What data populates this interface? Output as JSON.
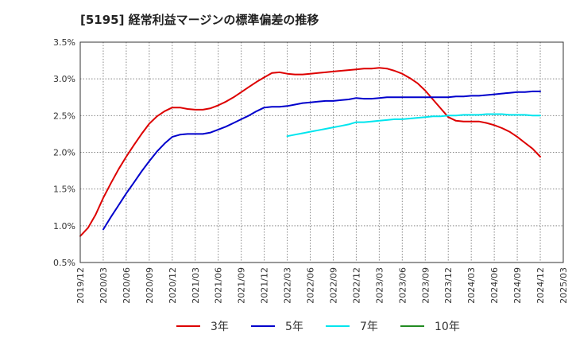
{
  "chart_data": {
    "type": "line",
    "title": "[5195]  経常利益マージンの標準偏差の推移",
    "ylim": [
      0.5,
      3.5
    ],
    "yticks": [
      "0.5%",
      "1.0%",
      "1.5%",
      "2.0%",
      "2.5%",
      "3.0%",
      "3.5%"
    ],
    "ytick_values": [
      0.5,
      1.0,
      1.5,
      2.0,
      2.5,
      3.0,
      3.5
    ],
    "xticks": [
      "2019/12",
      "2020/03",
      "2020/06",
      "2020/09",
      "2020/12",
      "2021/03",
      "2021/06",
      "2021/09",
      "2021/12",
      "2022/03",
      "2022/06",
      "2022/09",
      "2022/12",
      "2023/03",
      "2023/06",
      "2023/09",
      "2023/12",
      "2024/03",
      "2024/06",
      "2024/09",
      "2024/12",
      "2025/03"
    ],
    "grid": true,
    "legend_position": "bottom",
    "series": [
      {
        "name": "3年",
        "color": "#dd0000",
        "x": [
          "2019/12",
          "2020/01",
          "2020/02",
          "2020/03",
          "2020/04",
          "2020/05",
          "2020/06",
          "2020/07",
          "2020/08",
          "2020/09",
          "2020/10",
          "2020/11",
          "2020/12",
          "2021/01",
          "2021/02",
          "2021/03",
          "2021/04",
          "2021/05",
          "2021/06",
          "2021/07",
          "2021/08",
          "2021/09",
          "2021/10",
          "2021/11",
          "2021/12",
          "2022/01",
          "2022/02",
          "2022/03",
          "2022/04",
          "2022/05",
          "2022/06",
          "2022/07",
          "2022/08",
          "2022/09",
          "2022/10",
          "2022/11",
          "2022/12",
          "2023/01",
          "2023/02",
          "2023/03",
          "2023/04",
          "2023/05",
          "2023/06",
          "2023/07",
          "2023/08",
          "2023/09",
          "2023/10",
          "2023/11",
          "2023/12",
          "2024/01",
          "2024/02",
          "2024/03",
          "2024/04",
          "2024/05",
          "2024/06",
          "2024/07",
          "2024/08",
          "2024/09",
          "2024/10",
          "2024/11",
          "2024/12"
        ],
        "values": [
          0.86,
          0.97,
          1.15,
          1.38,
          1.58,
          1.77,
          1.94,
          2.1,
          2.25,
          2.39,
          2.49,
          2.56,
          2.61,
          2.61,
          2.59,
          2.58,
          2.58,
          2.6,
          2.64,
          2.69,
          2.75,
          2.82,
          2.89,
          2.96,
          3.02,
          3.08,
          3.09,
          3.07,
          3.06,
          3.06,
          3.07,
          3.08,
          3.09,
          3.1,
          3.11,
          3.12,
          3.13,
          3.14,
          3.14,
          3.15,
          3.14,
          3.11,
          3.07,
          3.01,
          2.94,
          2.84,
          2.72,
          2.6,
          2.48,
          2.43,
          2.42,
          2.42,
          2.42,
          2.4,
          2.37,
          2.33,
          2.28,
          2.21,
          2.13,
          2.05,
          1.94
        ]
      },
      {
        "name": "5年",
        "color": "#0000cc",
        "x": [
          "2020/03",
          "2020/04",
          "2020/05",
          "2020/06",
          "2020/07",
          "2020/08",
          "2020/09",
          "2020/10",
          "2020/11",
          "2020/12",
          "2021/01",
          "2021/02",
          "2021/03",
          "2021/04",
          "2021/05",
          "2021/06",
          "2021/07",
          "2021/08",
          "2021/09",
          "2021/10",
          "2021/11",
          "2021/12",
          "2022/01",
          "2022/02",
          "2022/03",
          "2022/04",
          "2022/05",
          "2022/06",
          "2022/07",
          "2022/08",
          "2022/09",
          "2022/10",
          "2022/11",
          "2022/12",
          "2023/01",
          "2023/02",
          "2023/03",
          "2023/04",
          "2023/05",
          "2023/06",
          "2023/07",
          "2023/08",
          "2023/09",
          "2023/10",
          "2023/11",
          "2023/12",
          "2024/01",
          "2024/02",
          "2024/03",
          "2024/04",
          "2024/05",
          "2024/06",
          "2024/07",
          "2024/08",
          "2024/09",
          "2024/10",
          "2024/11",
          "2024/12"
        ],
        "values": [
          0.95,
          1.12,
          1.28,
          1.44,
          1.59,
          1.74,
          1.88,
          2.01,
          2.12,
          2.21,
          2.24,
          2.25,
          2.25,
          2.25,
          2.27,
          2.31,
          2.35,
          2.4,
          2.45,
          2.5,
          2.56,
          2.61,
          2.62,
          2.62,
          2.63,
          2.65,
          2.67,
          2.68,
          2.69,
          2.7,
          2.7,
          2.71,
          2.72,
          2.74,
          2.73,
          2.73,
          2.74,
          2.75,
          2.75,
          2.75,
          2.75,
          2.75,
          2.75,
          2.75,
          2.75,
          2.75,
          2.76,
          2.76,
          2.77,
          2.77,
          2.78,
          2.79,
          2.8,
          2.81,
          2.82,
          2.82,
          2.83,
          2.83
        ]
      },
      {
        "name": "7年",
        "color": "#00e5ee",
        "x": [
          "2022/03",
          "2022/04",
          "2022/05",
          "2022/06",
          "2022/07",
          "2022/08",
          "2022/09",
          "2022/10",
          "2022/11",
          "2022/12",
          "2023/01",
          "2023/02",
          "2023/03",
          "2023/04",
          "2023/05",
          "2023/06",
          "2023/07",
          "2023/08",
          "2023/09",
          "2023/10",
          "2023/11",
          "2023/12",
          "2024/01",
          "2024/02",
          "2024/03",
          "2024/04",
          "2024/05",
          "2024/06",
          "2024/07",
          "2024/08",
          "2024/09",
          "2024/10",
          "2024/11",
          "2024/12"
        ],
        "values": [
          2.22,
          2.24,
          2.26,
          2.28,
          2.3,
          2.32,
          2.34,
          2.36,
          2.38,
          2.41,
          2.41,
          2.42,
          2.43,
          2.44,
          2.45,
          2.45,
          2.46,
          2.47,
          2.48,
          2.49,
          2.49,
          2.5,
          2.5,
          2.51,
          2.51,
          2.51,
          2.52,
          2.52,
          2.52,
          2.51,
          2.51,
          2.51,
          2.5,
          2.5
        ]
      },
      {
        "name": "10年",
        "color": "#228b22",
        "x": [],
        "values": []
      }
    ]
  }
}
